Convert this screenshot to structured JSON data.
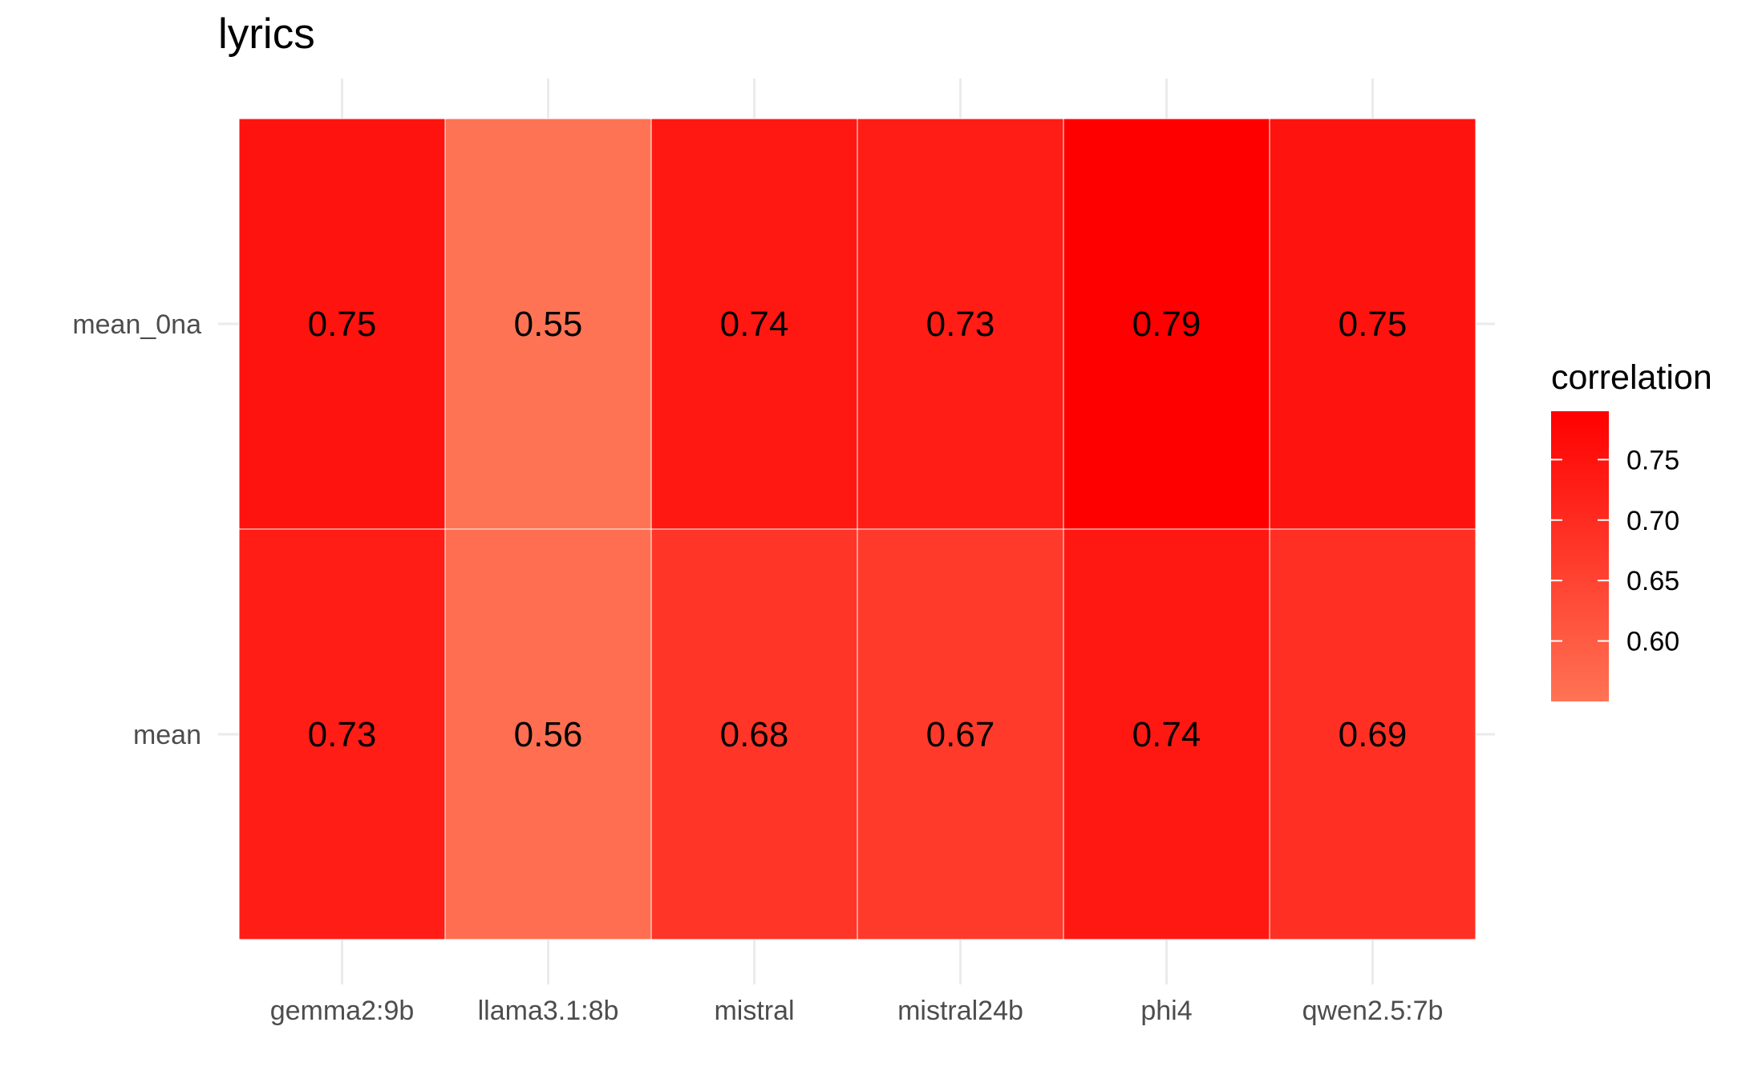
{
  "chart_data": {
    "type": "heatmap",
    "title": "lyrics",
    "xlabel": "",
    "ylabel": "",
    "x_categories": [
      "gemma2:9b",
      "llama3.1:8b",
      "mistral",
      "mistral24b",
      "phi4",
      "qwen2.5:7b"
    ],
    "y_categories": [
      "mean_0na",
      "mean"
    ],
    "values": [
      [
        0.75,
        0.55,
        0.74,
        0.73,
        0.79,
        0.75
      ],
      [
        0.73,
        0.56,
        0.68,
        0.67,
        0.74,
        0.69
      ]
    ],
    "value_labels": [
      [
        "0.75",
        "0.55",
        "0.74",
        "0.73",
        "0.79",
        "0.75"
      ],
      [
        "0.73",
        "0.56",
        "0.68",
        "0.67",
        "0.74",
        "0.69"
      ]
    ],
    "legend": {
      "title": "correlation",
      "placement": "right",
      "ticks": [
        0.75,
        0.7,
        0.65,
        0.6
      ],
      "tick_labels": [
        "0.75",
        "0.70",
        "0.65",
        "0.60"
      ],
      "range": [
        0.55,
        0.79
      ],
      "color_low": "#ff7355",
      "color_high": "#ff0000"
    },
    "grid": true
  }
}
